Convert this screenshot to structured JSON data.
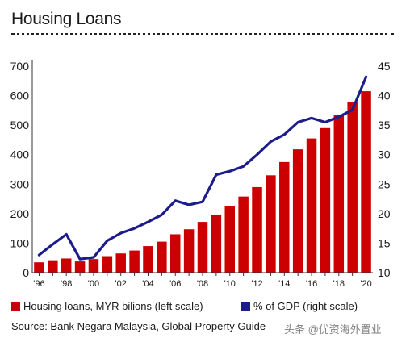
{
  "chart_data": {
    "type": "bar",
    "title": "Housing Loans",
    "x": [
      1996,
      1997,
      1998,
      1999,
      2000,
      2001,
      2002,
      2003,
      2004,
      2005,
      2006,
      2007,
      2008,
      2009,
      2010,
      2011,
      2012,
      2013,
      2014,
      2015,
      2016,
      2017,
      2018,
      2019,
      2020
    ],
    "x_tick_labels": [
      "'96",
      "'98",
      "'00",
      "'02",
      "'04",
      "'06",
      "'08",
      "'10",
      "'12",
      "'14",
      "'16",
      "'18",
      "'20"
    ],
    "y_left": {
      "range": [
        0,
        700
      ],
      "ticks": [
        "0",
        "100",
        "200",
        "300",
        "400",
        "500",
        "600",
        "700"
      ]
    },
    "y_right": {
      "range": [
        10,
        45
      ],
      "ticks": [
        "10",
        "15",
        "20",
        "25",
        "30",
        "35",
        "40",
        "45"
      ]
    },
    "series": [
      {
        "name": "Housing loans, MYR bilions (left scale)",
        "type": "bar",
        "axis": "left",
        "color": "#cc0000",
        "values": [
          35,
          42,
          48,
          38,
          46,
          56,
          65,
          75,
          90,
          105,
          130,
          147,
          172,
          197,
          226,
          258,
          290,
          330,
          375,
          418,
          455,
          490,
          535,
          577,
          615
        ]
      },
      {
        "name": "% of GDP (right scale)",
        "type": "line",
        "axis": "right",
        "color": "#1c1c8c",
        "values": [
          13.0,
          14.8,
          16.5,
          12.3,
          12.6,
          15.4,
          16.7,
          17.5,
          18.6,
          19.8,
          22.2,
          21.5,
          22.0,
          26.6,
          27.2,
          28.0,
          30.0,
          32.2,
          33.4,
          35.5,
          36.2,
          35.5,
          36.4,
          37.6,
          43.2
        ]
      }
    ],
    "grid": false,
    "legend_position": "bottom"
  },
  "source": "Source: Bank Negara Malaysia, Global Property Guide",
  "watermark": "头条 @优资海外置业"
}
